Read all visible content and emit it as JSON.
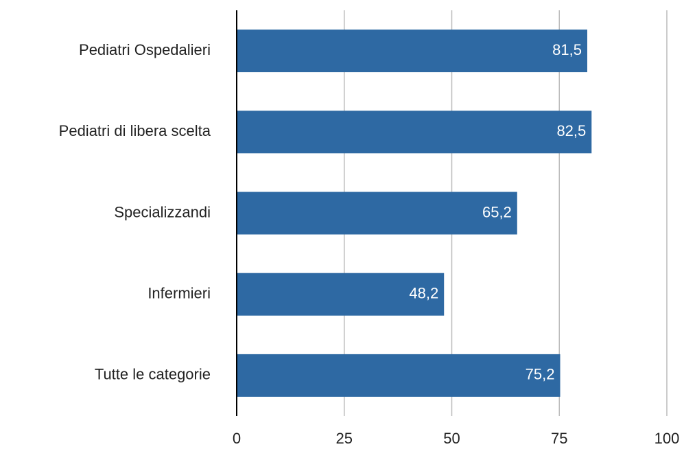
{
  "chart_data": {
    "type": "bar",
    "orientation": "horizontal",
    "categories": [
      "Pediatri Ospedalieri",
      "Pediatri di libera scelta",
      "Specializzandi",
      "Infermieri",
      "Tutte le categorie"
    ],
    "values": [
      81.5,
      82.5,
      65.2,
      48.2,
      75.2
    ],
    "value_labels": [
      "81,5",
      "82,5",
      "65,2",
      "48,2",
      "75,2"
    ],
    "color": "#2e69a3",
    "xlim": [
      0,
      100
    ],
    "xticks": [
      0,
      25,
      50,
      75,
      100
    ],
    "grid": true
  }
}
